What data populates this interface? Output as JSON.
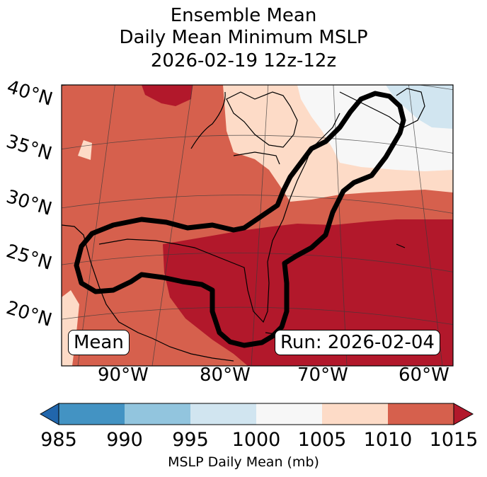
{
  "title": {
    "line1": "Ensemble Mean",
    "line2": "Daily Mean Minimum MSLP",
    "line3": "2026-02-19 12z-12z"
  },
  "latitude_labels": [
    "40°N",
    "35°N",
    "30°N",
    "25°N",
    "20°N"
  ],
  "longitude_labels": [
    "90°W",
    "80°W",
    "70°W",
    "60°W"
  ],
  "mean_label": "Mean",
  "run_label": "Run: 2026-02-04",
  "colorbar": {
    "ticks": [
      "985",
      "990",
      "995",
      "1000",
      "1005",
      "1010",
      "1015"
    ],
    "label": "MSLP Daily Mean (mb)",
    "colors": {
      "under": "#2166ac",
      "985-990": "#4393c3",
      "990-995": "#92c5de",
      "995-1000": "#d1e5f0",
      "1000-1005": "#f7f7f7",
      "1005-1010": "#fddbc7",
      "1010-1015": "#d6604d",
      "over": "#b2182b"
    }
  }
}
